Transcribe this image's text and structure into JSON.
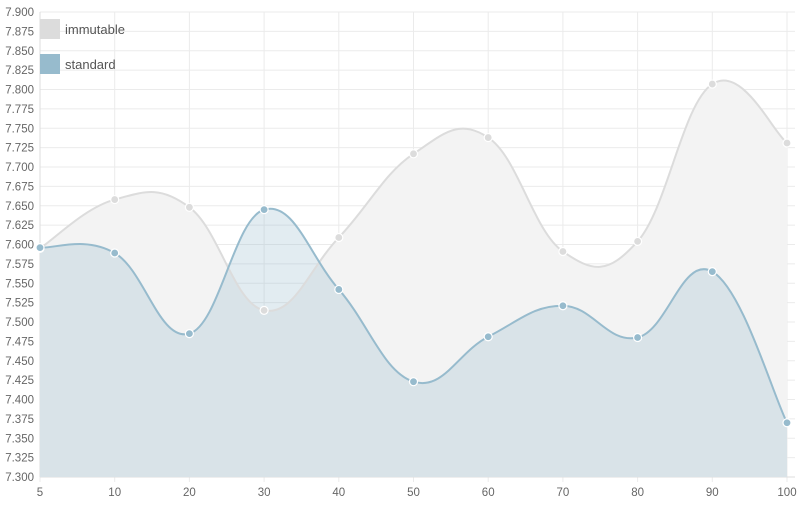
{
  "chart_data": {
    "type": "area",
    "x": [
      5,
      10,
      20,
      30,
      40,
      50,
      60,
      70,
      80,
      90,
      100
    ],
    "x_tick_labels": [
      "5",
      "10",
      "20",
      "30",
      "40",
      "50",
      "60",
      "70",
      "80",
      "90",
      "100"
    ],
    "ylim": [
      7.3,
      7.9
    ],
    "y_tick_step": 0.025,
    "y_tick_labels": [
      "7.300",
      "7.325",
      "7.350",
      "7.375",
      "7.400",
      "7.425",
      "7.450",
      "7.475",
      "7.500",
      "7.525",
      "7.550",
      "7.575",
      "7.600",
      "7.625",
      "7.650",
      "7.675",
      "7.700",
      "7.725",
      "7.750",
      "7.775",
      "7.800",
      "7.825",
      "7.850",
      "7.875",
      "7.900"
    ],
    "grid": true,
    "legend_position": "top-left",
    "series": [
      {
        "name": "immutable",
        "values": [
          7.595,
          7.658,
          7.648,
          7.515,
          7.609,
          7.717,
          7.738,
          7.591,
          7.604,
          7.807,
          7.731
        ],
        "line_color": "#dcdcdc",
        "fill_color": "#f3f3f3",
        "swatch_color": "#dcdcdc"
      },
      {
        "name": "standard",
        "values": [
          7.596,
          7.589,
          7.485,
          7.645,
          7.542,
          7.423,
          7.481,
          7.521,
          7.48,
          7.565,
          7.37
        ],
        "line_color": "#97bbcd",
        "fill_color": "rgba(151,187,205,0.28)",
        "swatch_color": "#97bbcd"
      }
    ]
  }
}
